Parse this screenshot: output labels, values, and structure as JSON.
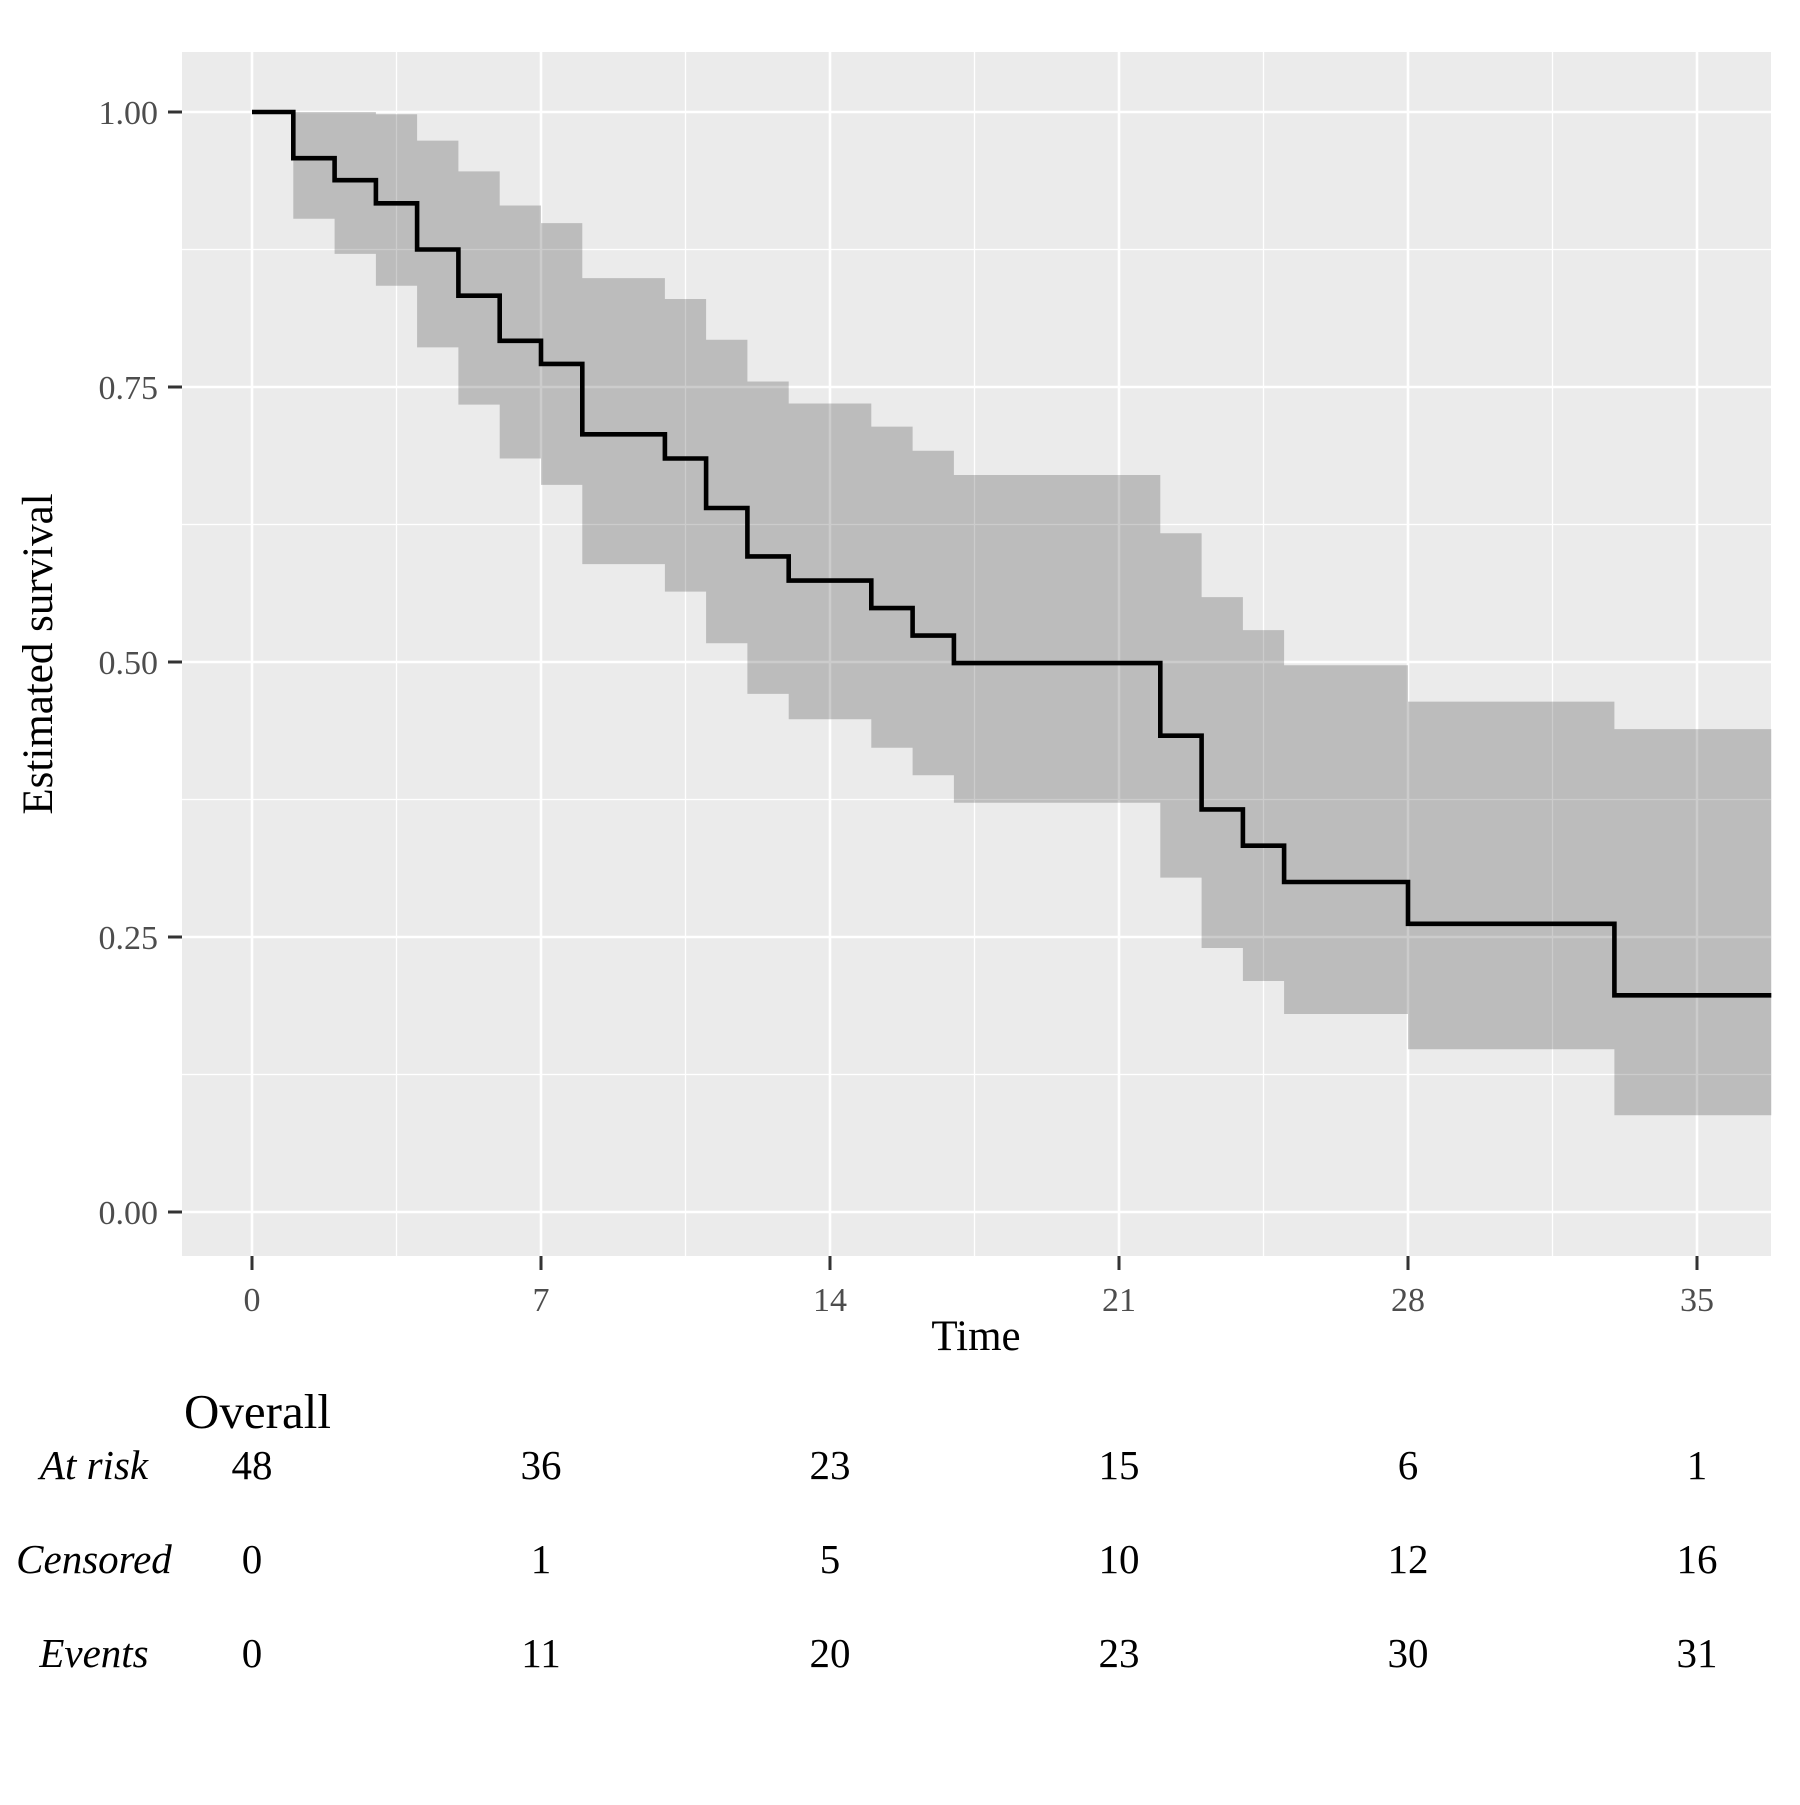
{
  "chart": {
    "xlabel": "Time",
    "ylabel": "Estimated survival"
  },
  "chart_data": {
    "type": "line",
    "subtype": "kaplan-meier-step-with-confidence-band",
    "title": "",
    "xlabel": "Time",
    "ylabel": "Estimated survival",
    "xlim": [
      -1.7,
      36.8
    ],
    "ylim": [
      -0.04,
      1.054
    ],
    "x_ticks": [
      0,
      7,
      14,
      21,
      28,
      35
    ],
    "x_minor_gridlines": [
      3.5,
      10.5,
      17.5,
      24.5,
      31.5
    ],
    "y_ticks": [
      {
        "value": 1.0,
        "label": "1.00"
      },
      {
        "value": 0.75,
        "label": "0.75"
      },
      {
        "value": 0.5,
        "label": "0.50"
      },
      {
        "value": 0.25,
        "label": "0.25"
      },
      {
        "value": 0.0,
        "label": "0.00"
      }
    ],
    "y_minor_gridlines": [
      0.875,
      0.625,
      0.375,
      0.125
    ],
    "grid": "on",
    "legend": "none",
    "colors": {
      "panel_background": "#ebebeb",
      "gridline": "#ffffff",
      "step_line": "#000000",
      "ci_fill": "#000000",
      "ci_opacity": 0.2,
      "tick_mark": "#333333",
      "tick_label": "#4d4d4d",
      "axis_title": "#000000"
    },
    "series": [
      {
        "name": "Overall",
        "start": {
          "time": 0,
          "survival": 1.0
        },
        "end_time": 36.8,
        "steps": [
          {
            "time": 1,
            "survival": 0.958,
            "ci_upper": 1.0,
            "ci_lower": 0.903
          },
          {
            "time": 2,
            "survival": 0.938,
            "ci_upper": 1.0,
            "ci_lower": 0.871
          },
          {
            "time": 3,
            "survival": 0.917,
            "ci_upper": 0.998,
            "ci_lower": 0.842
          },
          {
            "time": 4,
            "survival": 0.875,
            "ci_upper": 0.974,
            "ci_lower": 0.786
          },
          {
            "time": 5,
            "survival": 0.833,
            "ci_upper": 0.946,
            "ci_lower": 0.734
          },
          {
            "time": 6,
            "survival": 0.792,
            "ci_upper": 0.915,
            "ci_lower": 0.685
          },
          {
            "time": 7,
            "survival": 0.771,
            "ci_upper": 0.899,
            "ci_lower": 0.661
          },
          {
            "time": 8,
            "survival": 0.707,
            "ci_upper": 0.849,
            "ci_lower": 0.589
          },
          {
            "time": 10,
            "survival": 0.685,
            "ci_upper": 0.83,
            "ci_lower": 0.564
          },
          {
            "time": 11,
            "survival": 0.64,
            "ci_upper": 0.793,
            "ci_lower": 0.517
          },
          {
            "time": 12,
            "survival": 0.596,
            "ci_upper": 0.755,
            "ci_lower": 0.471
          },
          {
            "time": 13,
            "survival": 0.574,
            "ci_upper": 0.735,
            "ci_lower": 0.448
          },
          {
            "time": 15,
            "survival": 0.549,
            "ci_upper": 0.714,
            "ci_lower": 0.422
          },
          {
            "time": 16,
            "survival": 0.524,
            "ci_upper": 0.692,
            "ci_lower": 0.397
          },
          {
            "time": 17,
            "survival": 0.499,
            "ci_upper": 0.67,
            "ci_lower": 0.372
          },
          {
            "time": 22,
            "survival": 0.433,
            "ci_upper": 0.617,
            "ci_lower": 0.304
          },
          {
            "time": 23,
            "survival": 0.366,
            "ci_upper": 0.559,
            "ci_lower": 0.24
          },
          {
            "time": 24,
            "survival": 0.333,
            "ci_upper": 0.529,
            "ci_lower": 0.21
          },
          {
            "time": 25,
            "survival": 0.3,
            "ci_upper": 0.497,
            "ci_lower": 0.18
          },
          {
            "time": 28,
            "survival": 0.262,
            "ci_upper": 0.464,
            "ci_lower": 0.148
          },
          {
            "time": 33,
            "survival": 0.197,
            "ci_upper": 0.439,
            "ci_lower": 0.088
          }
        ]
      }
    ]
  },
  "risk_table": {
    "title": "Overall",
    "times": [
      0,
      7,
      14,
      21,
      28,
      35
    ],
    "rows": [
      {
        "label": "At risk",
        "values": [
          "48",
          "36",
          "23",
          "15",
          "6",
          "1"
        ]
      },
      {
        "label": "Censored",
        "values": [
          "0",
          "1",
          "5",
          "10",
          "12",
          "16"
        ]
      },
      {
        "label": "Events",
        "values": [
          "0",
          "11",
          "20",
          "23",
          "30",
          "31"
        ]
      }
    ]
  }
}
